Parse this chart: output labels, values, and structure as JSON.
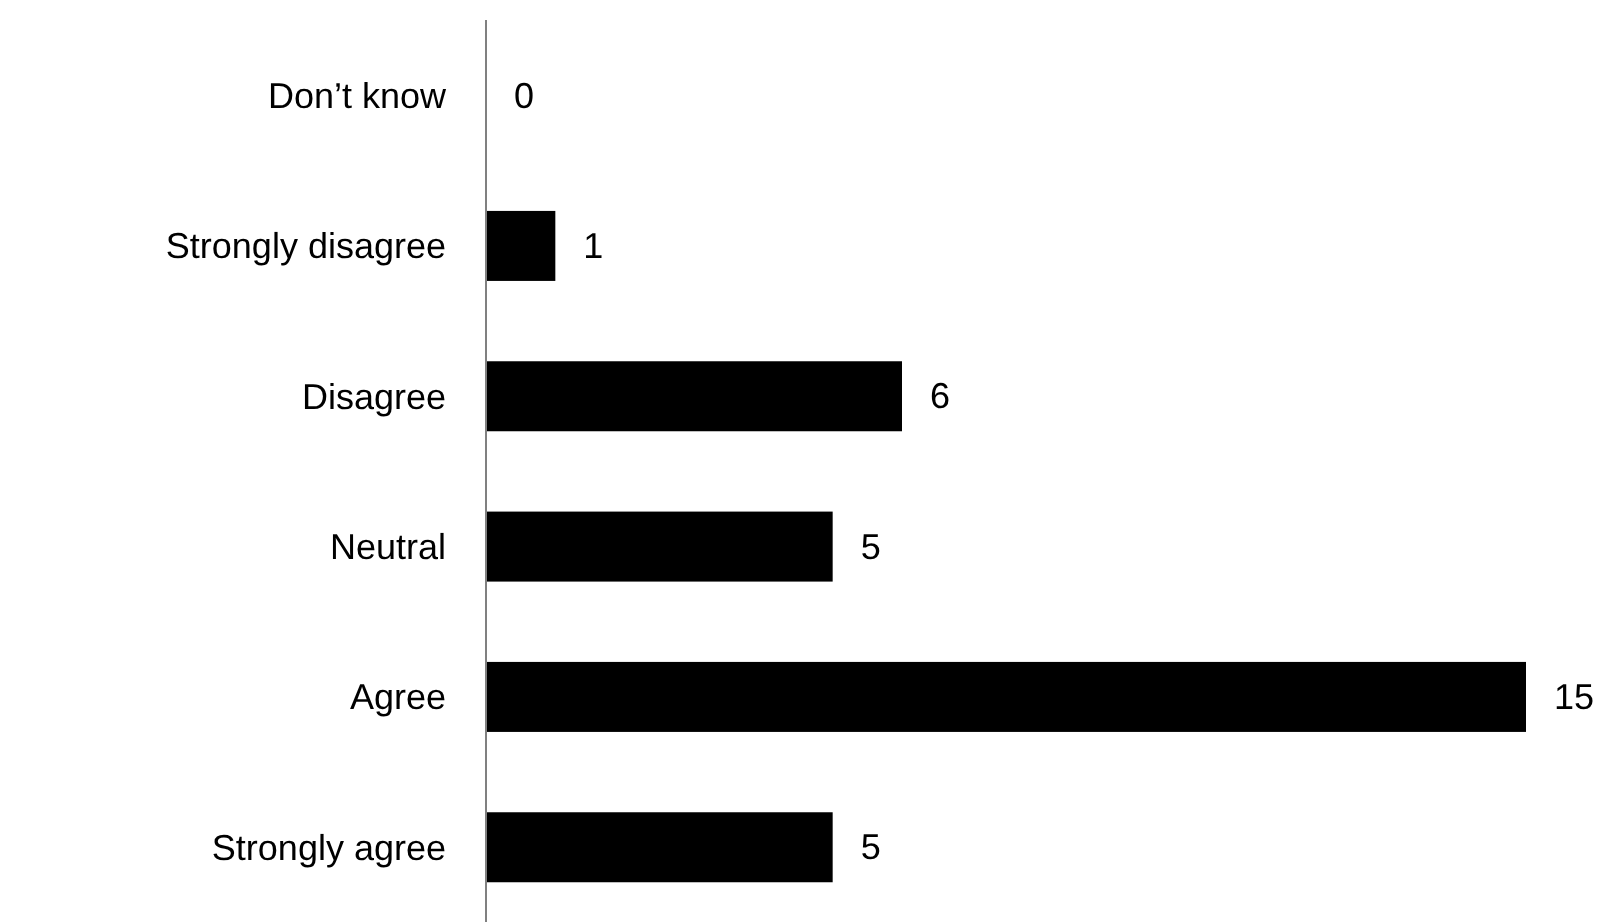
{
  "chart_data": {
    "type": "bar",
    "orientation": "horizontal",
    "categories": [
      "Don’t know",
      "Strongly disagree",
      "Disagree",
      "Neutral",
      "Agree",
      "Strongly agree"
    ],
    "values": [
      0,
      1,
      6,
      5,
      15,
      5
    ],
    "color": "#000000",
    "data_labels": true
  }
}
